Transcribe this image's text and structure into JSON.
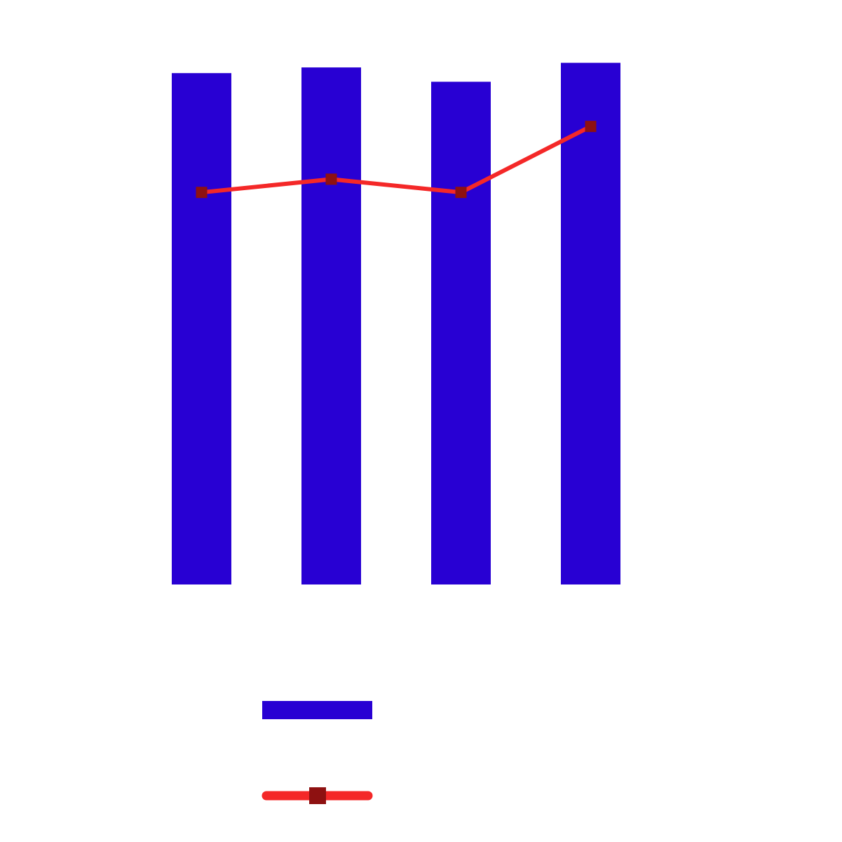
{
  "chart_data": {
    "type": "bar",
    "categories": [
      "",
      "",
      "",
      ""
    ],
    "ylim": [
      0,
      100
    ],
    "grid": false,
    "legend_placement": "bottom",
    "series": [
      {
        "type": "bar",
        "values": [
          89.2,
          90.2,
          87.7,
          91.0
        ],
        "color": "#2800D3"
      },
      {
        "type": "line",
        "values": [
          68.4,
          70.7,
          68.4,
          79.9
        ],
        "color": "#F42828",
        "marker_color": "#8E1111"
      }
    ]
  }
}
